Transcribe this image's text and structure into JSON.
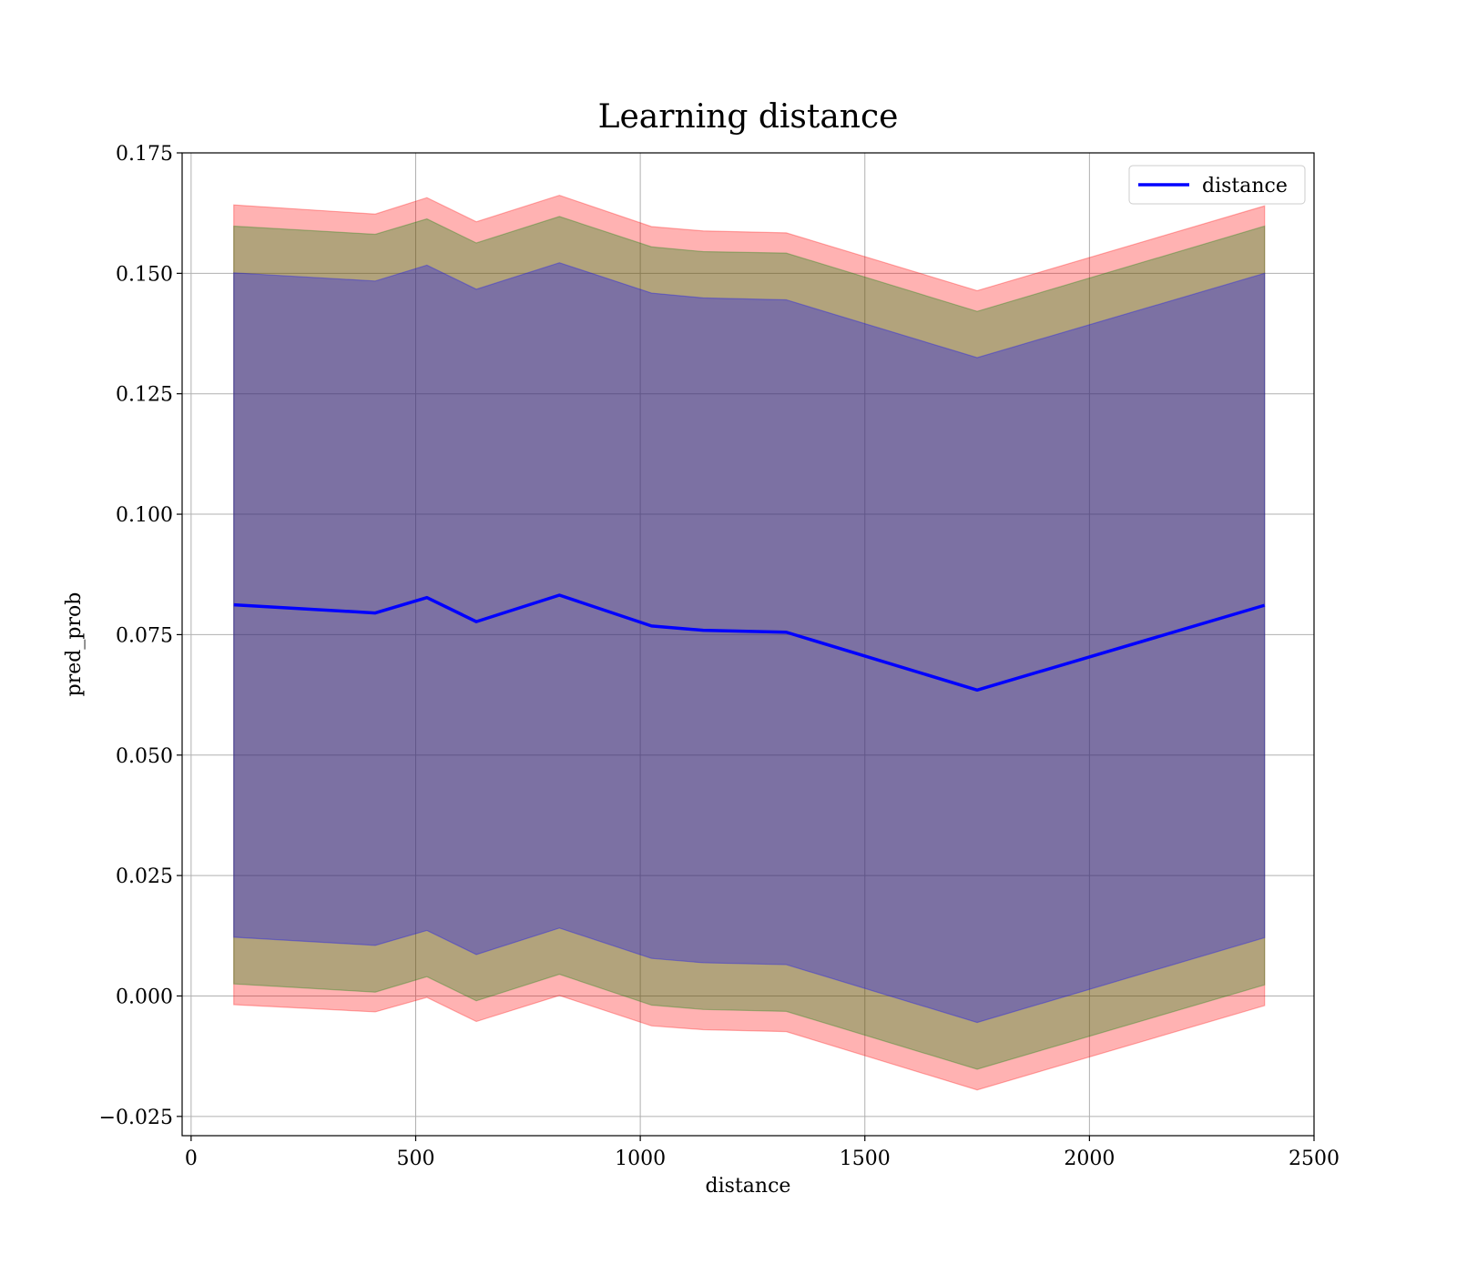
{
  "chart_data": {
    "type": "area",
    "title": "Learning distance",
    "xlabel": "distance",
    "ylabel": "pred_prob",
    "xlim": [
      -20,
      2500
    ],
    "ylim": [
      -0.029,
      0.175
    ],
    "xticks": [
      0,
      500,
      1000,
      1500,
      2000,
      2500
    ],
    "xtick_labels": [
      "0",
      "500",
      "1000",
      "1500",
      "2000",
      "2500"
    ],
    "yticks": [
      -0.025,
      0.0,
      0.025,
      0.05,
      0.075,
      0.1,
      0.125,
      0.15,
      0.175
    ],
    "ytick_labels": [
      "−0.025",
      "0.000",
      "0.025",
      "0.050",
      "0.075",
      "0.100",
      "0.125",
      "0.150",
      "0.175"
    ],
    "grid": true,
    "legend": {
      "position": "top-right",
      "entries": [
        "distance"
      ]
    },
    "x": [
      95,
      410,
      525,
      635,
      820,
      1025,
      1140,
      1325,
      1750,
      2390
    ],
    "series": [
      {
        "name": "distance",
        "kind": "line",
        "color": "#0000ff",
        "values": [
          0.0812,
          0.0795,
          0.0827,
          0.0777,
          0.0832,
          0.0768,
          0.0759,
          0.0755,
          0.0635,
          0.0811
        ]
      }
    ],
    "bands": [
      {
        "color": "#ff0000",
        "lower": [
          -0.0018,
          -0.0033,
          -0.0003,
          -0.0053,
          0.0001,
          -0.0062,
          -0.007,
          -0.0074,
          -0.0195,
          -0.002
        ],
        "upper": [
          0.1642,
          0.1623,
          0.1657,
          0.1607,
          0.1662,
          0.1597,
          0.1588,
          0.1584,
          0.1464,
          0.164
        ]
      },
      {
        "color": "#008000",
        "lower": [
          0.0025,
          0.0008,
          0.004,
          -0.001,
          0.0045,
          -0.0019,
          -0.0028,
          -0.0032,
          -0.0152,
          0.0023
        ],
        "upper": [
          0.1598,
          0.1581,
          0.1613,
          0.1563,
          0.1618,
          0.1555,
          0.1545,
          0.1542,
          0.1421,
          0.1598
        ]
      },
      {
        "color": "#0000ff",
        "lower": [
          0.0122,
          0.0105,
          0.0136,
          0.0086,
          0.0141,
          0.0078,
          0.0069,
          0.0065,
          -0.0055,
          0.0121
        ],
        "upper": [
          0.1501,
          0.1484,
          0.1517,
          0.1467,
          0.1522,
          0.1459,
          0.1449,
          0.1445,
          0.1325,
          0.15
        ]
      }
    ]
  }
}
